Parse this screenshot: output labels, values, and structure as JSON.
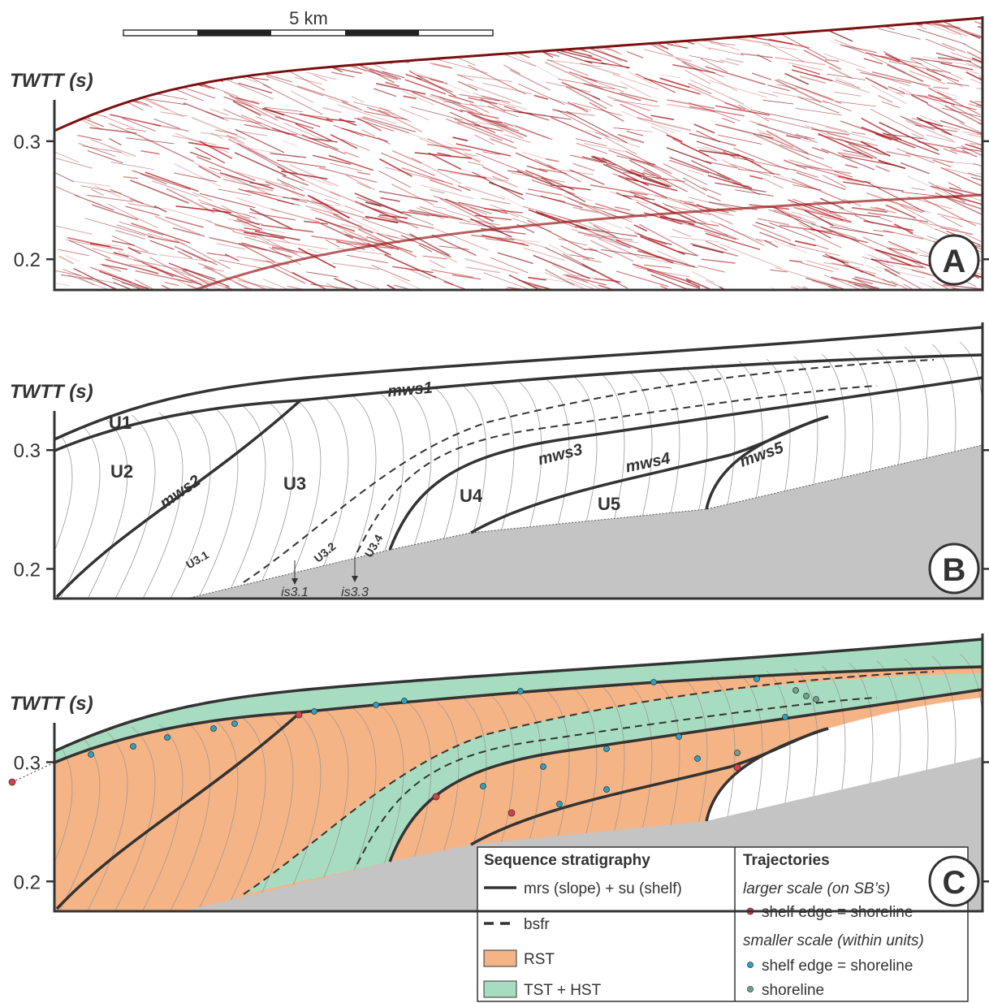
{
  "scale_bar": {
    "label": "5 km"
  },
  "panels": [
    {
      "label": "A",
      "axis_title": "TWTT (s)",
      "ylim": [
        0.174,
        0.335
      ],
      "yticks": [
        0.2,
        0.3
      ]
    },
    {
      "label": "B",
      "axis_title": "TWTT (s)",
      "ylim": [
        0.175,
        0.333
      ],
      "yticks": [
        0.2,
        0.3
      ],
      "annotations": {
        "units": [
          "U1",
          "U2",
          "U3",
          "U4",
          "U5"
        ],
        "surfaces": [
          "mws1",
          "mws2",
          "mws3",
          "mws4",
          "mws5"
        ],
        "subunits": [
          "U3.1",
          "U3.2",
          "U3.4"
        ],
        "internal_surfaces": [
          "is3.1",
          "is3.3"
        ]
      }
    },
    {
      "label": "C",
      "axis_title": "TWTT (s)",
      "ylim": [
        0.175,
        0.333
      ],
      "yticks": [
        0.2,
        0.3
      ],
      "legend": {
        "sequence_stratigraphy": {
          "title": "Sequence stratigraphy",
          "items": [
            "mrs (slope) + su (shelf)",
            "bsfr",
            "RST",
            "TST + HST"
          ]
        },
        "trajectories": {
          "title": "Trajectories",
          "larger_scale": "larger scale (on SB’s)",
          "larger_items": [
            "shelf edge = shoreline"
          ],
          "smaller_scale": "smaller scale (within units)",
          "smaller_items": [
            "shelf edge = shoreline",
            "shoreline"
          ]
        }
      }
    }
  ]
}
